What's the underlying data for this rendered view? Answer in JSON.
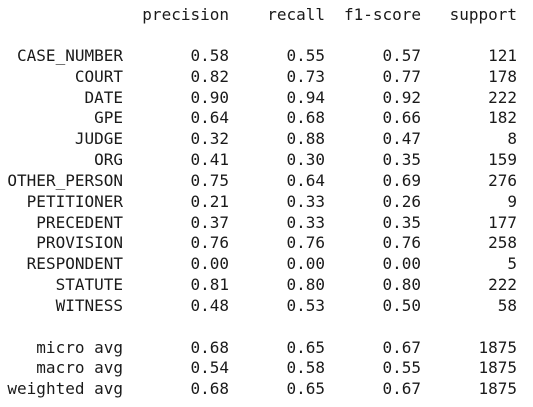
{
  "headers": [
    "precision",
    "recall",
    "f1-score",
    "support"
  ],
  "rows": [
    {
      "label": "CASE_NUMBER",
      "precision": "0.58",
      "recall": "0.55",
      "f1": "0.57",
      "support": "121"
    },
    {
      "label": "COURT",
      "precision": "0.82",
      "recall": "0.73",
      "f1": "0.77",
      "support": "178"
    },
    {
      "label": "DATE",
      "precision": "0.90",
      "recall": "0.94",
      "f1": "0.92",
      "support": "222"
    },
    {
      "label": "GPE",
      "precision": "0.64",
      "recall": "0.68",
      "f1": "0.66",
      "support": "182"
    },
    {
      "label": "JUDGE",
      "precision": "0.32",
      "recall": "0.88",
      "f1": "0.47",
      "support": "8"
    },
    {
      "label": "ORG",
      "precision": "0.41",
      "recall": "0.30",
      "f1": "0.35",
      "support": "159"
    },
    {
      "label": "OTHER_PERSON",
      "precision": "0.75",
      "recall": "0.64",
      "f1": "0.69",
      "support": "276"
    },
    {
      "label": "PETITIONER",
      "precision": "0.21",
      "recall": "0.33",
      "f1": "0.26",
      "support": "9"
    },
    {
      "label": "PRECEDENT",
      "precision": "0.37",
      "recall": "0.33",
      "f1": "0.35",
      "support": "177"
    },
    {
      "label": "PROVISION",
      "precision": "0.76",
      "recall": "0.76",
      "f1": "0.76",
      "support": "258"
    },
    {
      "label": "RESPONDENT",
      "precision": "0.00",
      "recall": "0.00",
      "f1": "0.00",
      "support": "5"
    },
    {
      "label": "STATUTE",
      "precision": "0.81",
      "recall": "0.80",
      "f1": "0.80",
      "support": "222"
    },
    {
      "label": "WITNESS",
      "precision": "0.48",
      "recall": "0.53",
      "f1": "0.50",
      "support": "58"
    }
  ],
  "averages": [
    {
      "label": "micro avg",
      "precision": "0.68",
      "recall": "0.65",
      "f1": "0.67",
      "support": "1875"
    },
    {
      "label": "macro avg",
      "precision": "0.54",
      "recall": "0.58",
      "f1": "0.55",
      "support": "1875"
    },
    {
      "label": "weighted avg",
      "precision": "0.68",
      "recall": "0.65",
      "f1": "0.67",
      "support": "1875"
    }
  ]
}
